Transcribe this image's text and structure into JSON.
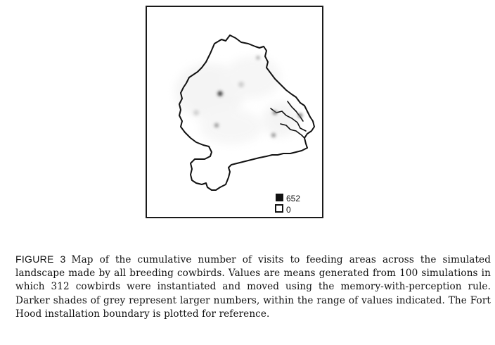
{
  "figure": {
    "legend": {
      "max_value": "652",
      "min_value": "0",
      "max_color": "#111111",
      "min_color": "#ffffff"
    }
  },
  "caption": {
    "label": "FIGURE 3",
    "text": "Map of the cumulative number of visits to feeding areas across the simulated landscape made by all breeding cowbirds. Values are means generated from 100 simulations in which 312 cowbirds were instantiated and moved using the memory-with-perception rule. Darker shades of grey represent larger numbers, within the range of values indicated. The Fort Hood installation boundary is plotted for reference."
  }
}
